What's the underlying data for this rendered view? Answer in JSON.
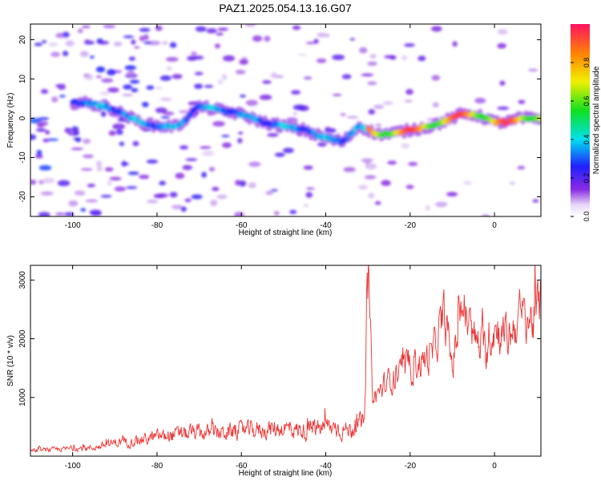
{
  "title": "PAZ1.2025.054.13.16.G07",
  "chart_data": [
    {
      "type": "heatmap",
      "xlabel": "Height of straight line (km)",
      "ylabel": "Frequency (Hz)",
      "xlim": [
        -110,
        11
      ],
      "ylim": [
        -25,
        24
      ],
      "xticks": [
        -100,
        -80,
        -60,
        -40,
        -20,
        0
      ],
      "yticks": [
        20,
        10,
        0,
        -10,
        -20
      ],
      "colorbar": {
        "label": "Normalized spectral amplitude",
        "range": [
          0,
          1
        ],
        "ticks": [
          "0.0",
          "0.2",
          "0.4",
          "0.6",
          "0.8"
        ],
        "colormap": "rainbow (white→violet→blue→cyan→green→yellow→orange→red)"
      },
      "ridge": {
        "description": "dominant frequency ridge",
        "points": [
          [
            -98,
            4
          ],
          [
            -92,
            3
          ],
          [
            -88,
            1
          ],
          [
            -84,
            -1
          ],
          [
            -80,
            -2
          ],
          [
            -75,
            -2
          ],
          [
            -70,
            3
          ],
          [
            -65,
            2
          ],
          [
            -60,
            1
          ],
          [
            -55,
            -1
          ],
          [
            -50,
            -2
          ],
          [
            -45,
            -3
          ],
          [
            -40,
            -5
          ],
          [
            -36,
            -6
          ],
          [
            -32,
            -2
          ],
          [
            -28,
            -4
          ],
          [
            -25,
            -4
          ],
          [
            -20,
            -3
          ],
          [
            -15,
            -2
          ],
          [
            -10,
            0
          ],
          [
            -8,
            1
          ],
          [
            -5,
            1
          ],
          [
            -2,
            0
          ],
          [
            0,
            -1
          ],
          [
            3,
            -1
          ],
          [
            6,
            0
          ],
          [
            11,
            0
          ]
        ],
        "peak_amplitude_region_x": [
          -30,
          11
        ]
      }
    },
    {
      "type": "line",
      "xlabel": "Height of straight line (km)",
      "ylabel": "SNR (10 * v/v)",
      "xlim": [
        -110,
        11
      ],
      "ylim": [
        0,
        3250
      ],
      "xticks": [
        -100,
        -80,
        -60,
        -40,
        -20,
        0
      ],
      "yticks": [
        1000,
        2000,
        3000
      ],
      "series": [
        {
          "color": "#ee3333",
          "x": [
            -110,
            -105,
            -100,
            -95,
            -90,
            -85,
            -80,
            -75,
            -70,
            -65,
            -60,
            -55,
            -50,
            -45,
            -40,
            -35,
            -31,
            -30,
            -29,
            -28,
            -25,
            -20,
            -15,
            -12,
            -10,
            -8,
            -5,
            -2,
            0,
            3,
            6,
            9,
            11
          ],
          "y": [
            90,
            110,
            130,
            140,
            230,
            260,
            330,
            370,
            390,
            400,
            430,
            450,
            480,
            420,
            500,
            440,
            560,
            3250,
            900,
            1050,
            1300,
            1500,
            1700,
            2400,
            1500,
            2600,
            2000,
            1800,
            2200,
            2000,
            2400,
            2300,
            2600
          ]
        }
      ]
    }
  ]
}
